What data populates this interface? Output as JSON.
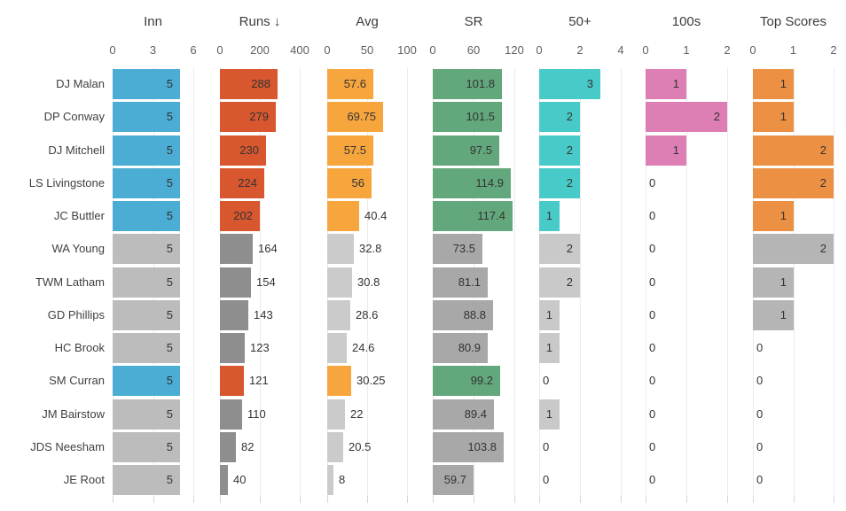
{
  "chart_data": {
    "type": "bar",
    "description": "Bar-table of batting statistics, one bar column per metric, sorted by Runs descending",
    "rows": [
      "DJ Malan",
      "DP Conway",
      "DJ Mitchell",
      "LS Livingstone",
      "JC Buttler",
      "WA Young",
      "TWM Latham",
      "GD Phillips",
      "HC Brook",
      "SM Curran",
      "JM Bairstow",
      "JDS Neesham",
      "JE Root"
    ],
    "row_highlighted": [
      true,
      true,
      true,
      true,
      true,
      false,
      false,
      false,
      false,
      true,
      false,
      false,
      false
    ],
    "columns": [
      {
        "label": "Inn",
        "ticks": [
          "0",
          "3",
          "6"
        ],
        "max": 6,
        "color": "#4bacd4",
        "gray": "#bcbcbc",
        "values": [
          5,
          5,
          5,
          5,
          5,
          5,
          5,
          5,
          5,
          5,
          5,
          5,
          5
        ],
        "display": [
          "5",
          "5",
          "5",
          "5",
          "5",
          "5",
          "5",
          "5",
          "5",
          "5",
          "5",
          "5",
          "5"
        ],
        "inside_min": 0
      },
      {
        "label": "Runs ↓",
        "ticks": [
          "0",
          "200",
          "400"
        ],
        "max": 400,
        "color": "#d8572f",
        "gray": "#8e8e8e",
        "values": [
          288,
          279,
          230,
          224,
          202,
          164,
          154,
          143,
          123,
          121,
          110,
          82,
          40
        ],
        "display": [
          "288",
          "279",
          "230",
          "224",
          "202",
          "164",
          "154",
          "143",
          "123",
          "121",
          "110",
          "82",
          "40"
        ],
        "inside_min": 200
      },
      {
        "label": "Avg",
        "ticks": [
          "0",
          "50",
          "100"
        ],
        "max": 100,
        "color": "#f7a63e",
        "gray": "#cbcbcb",
        "values": [
          57.6,
          69.75,
          57.5,
          56,
          40.4,
          32.8,
          30.8,
          28.6,
          24.6,
          30.25,
          22,
          20.5,
          8
        ],
        "display": [
          "57.6",
          "69.75",
          "57.5",
          "56",
          "40.4",
          "32.8",
          "30.8",
          "28.6",
          "24.6",
          "30.25",
          "22",
          "20.5",
          "8"
        ],
        "inside_min": 45
      },
      {
        "label": "SR",
        "ticks": [
          "0",
          "60",
          "120"
        ],
        "max": 120,
        "color": "#63a87c",
        "gray": "#a8a8a8",
        "values": [
          101.8,
          101.5,
          97.5,
          114.9,
          117.4,
          73.5,
          81.1,
          88.8,
          80.9,
          99.2,
          89.4,
          103.8,
          59.7
        ],
        "display": [
          "101.8",
          "101.5",
          "97.5",
          "114.9",
          "117.4",
          "73.5",
          "81.1",
          "88.8",
          "80.9",
          "99.2",
          "89.4",
          "103.8",
          "59.7"
        ],
        "inside_min": 0
      },
      {
        "label": "50+",
        "ticks": [
          "0",
          "2",
          "4"
        ],
        "max": 4,
        "color": "#48cbc8",
        "gray": "#c9c9c9",
        "values": [
          3,
          2,
          2,
          2,
          1,
          2,
          2,
          1,
          1,
          0,
          1,
          0,
          0
        ],
        "display": [
          "3",
          "2",
          "2",
          "2",
          "1",
          "2",
          "2",
          "1",
          "1",
          "0",
          "1",
          "0",
          "0"
        ],
        "inside_min": 1
      },
      {
        "label": "100s",
        "ticks": [
          "0",
          "1",
          "2"
        ],
        "max": 2,
        "color": "#dd7fb4",
        "gray": "#c9c9c9",
        "values": [
          1,
          2,
          1,
          0,
          0,
          0,
          0,
          0,
          0,
          0,
          0,
          0,
          0
        ],
        "display": [
          "1",
          "2",
          "1",
          "0",
          "0",
          "0",
          "0",
          "0",
          "0",
          "0",
          "0",
          "0",
          "0"
        ],
        "inside_min": 1
      },
      {
        "label": "Top Scores",
        "ticks": [
          "0",
          "1",
          "2"
        ],
        "max": 2,
        "color": "#ec9144",
        "gray": "#b5b5b5",
        "values": [
          1,
          1,
          2,
          2,
          1,
          2,
          1,
          1,
          0,
          0,
          0,
          0,
          0
        ],
        "display": [
          "1",
          "1",
          "2",
          "2",
          "1",
          "2",
          "1",
          "1",
          "0",
          "0",
          "0",
          "0",
          "0"
        ],
        "inside_min": 1
      }
    ]
  }
}
